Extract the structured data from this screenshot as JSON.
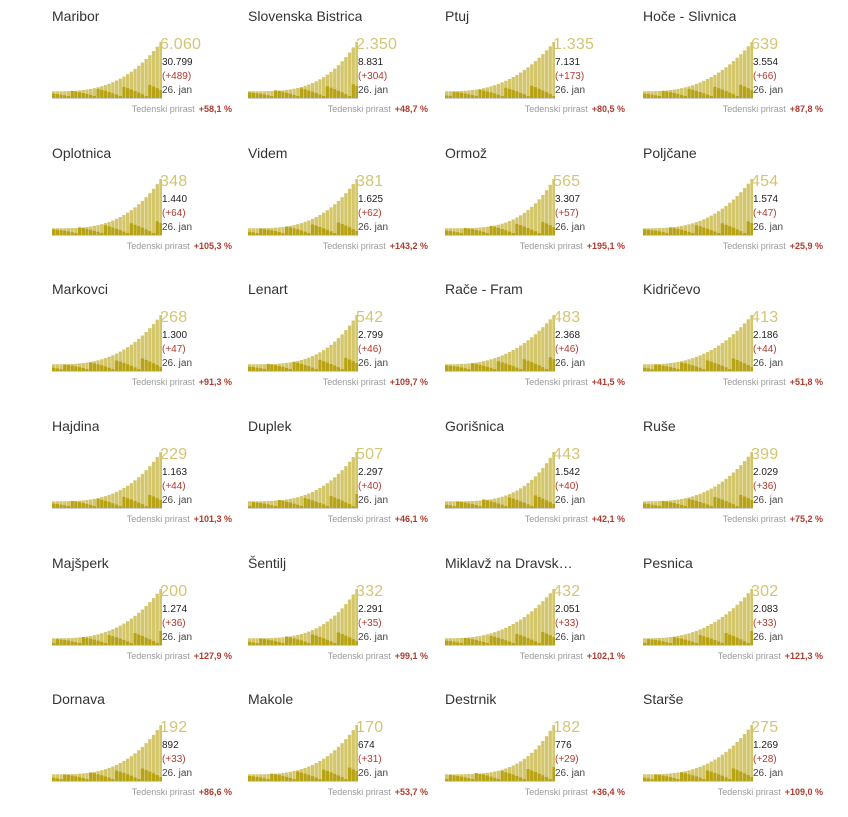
{
  "weekly_label": "Tedenski prirast",
  "date_label": "26. jan",
  "colors": {
    "cumulative": "#d4c66a",
    "daily": "#b8a317",
    "baseline": "#cfcfcf",
    "big_number": "#d4c574",
    "increase": "#b03a2e"
  },
  "chart_data": [
    {
      "type": "bar",
      "title": "Maribor",
      "value": "6.060",
      "total": "30.799",
      "delta": "(+489)",
      "weekly": "+58,1 %"
    },
    {
      "type": "bar",
      "title": "Slovenska Bistrica",
      "value": "2.350",
      "total": "8.831",
      "delta": "(+304)",
      "weekly": "+48,7 %"
    },
    {
      "type": "bar",
      "title": "Ptuj",
      "value": "1.335",
      "total": "7.131",
      "delta": "(+173)",
      "weekly": "+80,5 %"
    },
    {
      "type": "bar",
      "title": "Hoče - Slivnica",
      "value": "639",
      "total": "3.554",
      "delta": "(+66)",
      "weekly": "+87,8 %"
    },
    {
      "type": "bar",
      "title": "Oplotnica",
      "value": "348",
      "total": "1.440",
      "delta": "(+64)",
      "weekly": "+105,3 %"
    },
    {
      "type": "bar",
      "title": "Videm",
      "value": "381",
      "total": "1.625",
      "delta": "(+62)",
      "weekly": "+143,2 %"
    },
    {
      "type": "bar",
      "title": "Ormož",
      "value": "565",
      "total": "3.307",
      "delta": "(+57)",
      "weekly": "+195,1 %"
    },
    {
      "type": "bar",
      "title": "Poljčane",
      "value": "454",
      "total": "1.574",
      "delta": "(+47)",
      "weekly": "+25,9 %"
    },
    {
      "type": "bar",
      "title": "Markovci",
      "value": "268",
      "total": "1.300",
      "delta": "(+47)",
      "weekly": "+91,3 %"
    },
    {
      "type": "bar",
      "title": "Lenart",
      "value": "542",
      "total": "2.799",
      "delta": "(+46)",
      "weekly": "+109,7 %"
    },
    {
      "type": "bar",
      "title": "Rače - Fram",
      "value": "483",
      "total": "2.368",
      "delta": "(+46)",
      "weekly": "+41,5 %"
    },
    {
      "type": "bar",
      "title": "Kidričevo",
      "value": "413",
      "total": "2.186",
      "delta": "(+44)",
      "weekly": "+51,8 %"
    },
    {
      "type": "bar",
      "title": "Hajdina",
      "value": "229",
      "total": "1.163",
      "delta": "(+44)",
      "weekly": "+101,3 %"
    },
    {
      "type": "bar",
      "title": "Duplek",
      "value": "507",
      "total": "2.297",
      "delta": "(+40)",
      "weekly": "+46,1 %"
    },
    {
      "type": "bar",
      "title": "Gorišnica",
      "value": "443",
      "total": "1.542",
      "delta": "(+40)",
      "weekly": "+42,1 %"
    },
    {
      "type": "bar",
      "title": "Ruše",
      "value": "399",
      "total": "2.029",
      "delta": "(+36)",
      "weekly": "+75,2 %"
    },
    {
      "type": "bar",
      "title": "Majšperk",
      "value": "200",
      "total": "1.274",
      "delta": "(+36)",
      "weekly": "+127,9 %"
    },
    {
      "type": "bar",
      "title": "Šentilj",
      "value": "332",
      "total": "2.291",
      "delta": "(+35)",
      "weekly": "+99,1 %"
    },
    {
      "type": "bar",
      "title": "Miklavž na Dravske...",
      "value": "432",
      "total": "2.051",
      "delta": "(+33)",
      "weekly": "+102,1 %"
    },
    {
      "type": "bar",
      "title": "Pesnica",
      "value": "302",
      "total": "2.083",
      "delta": "(+33)",
      "weekly": "+121,3 %"
    },
    {
      "type": "bar",
      "title": "Dornava",
      "value": "192",
      "total": "892",
      "delta": "(+33)",
      "weekly": "+86,6 %"
    },
    {
      "type": "bar",
      "title": "Makole",
      "value": "170",
      "total": "674",
      "delta": "(+31)",
      "weekly": "+53,7 %"
    },
    {
      "type": "bar",
      "title": "Destrnik",
      "value": "182",
      "total": "776",
      "delta": "(+29)",
      "weekly": "+36,4 %"
    },
    {
      "type": "bar",
      "title": "Starše",
      "value": "275",
      "total": "1.269",
      "delta": "(+28)",
      "weekly": "+109,0 %"
    }
  ]
}
